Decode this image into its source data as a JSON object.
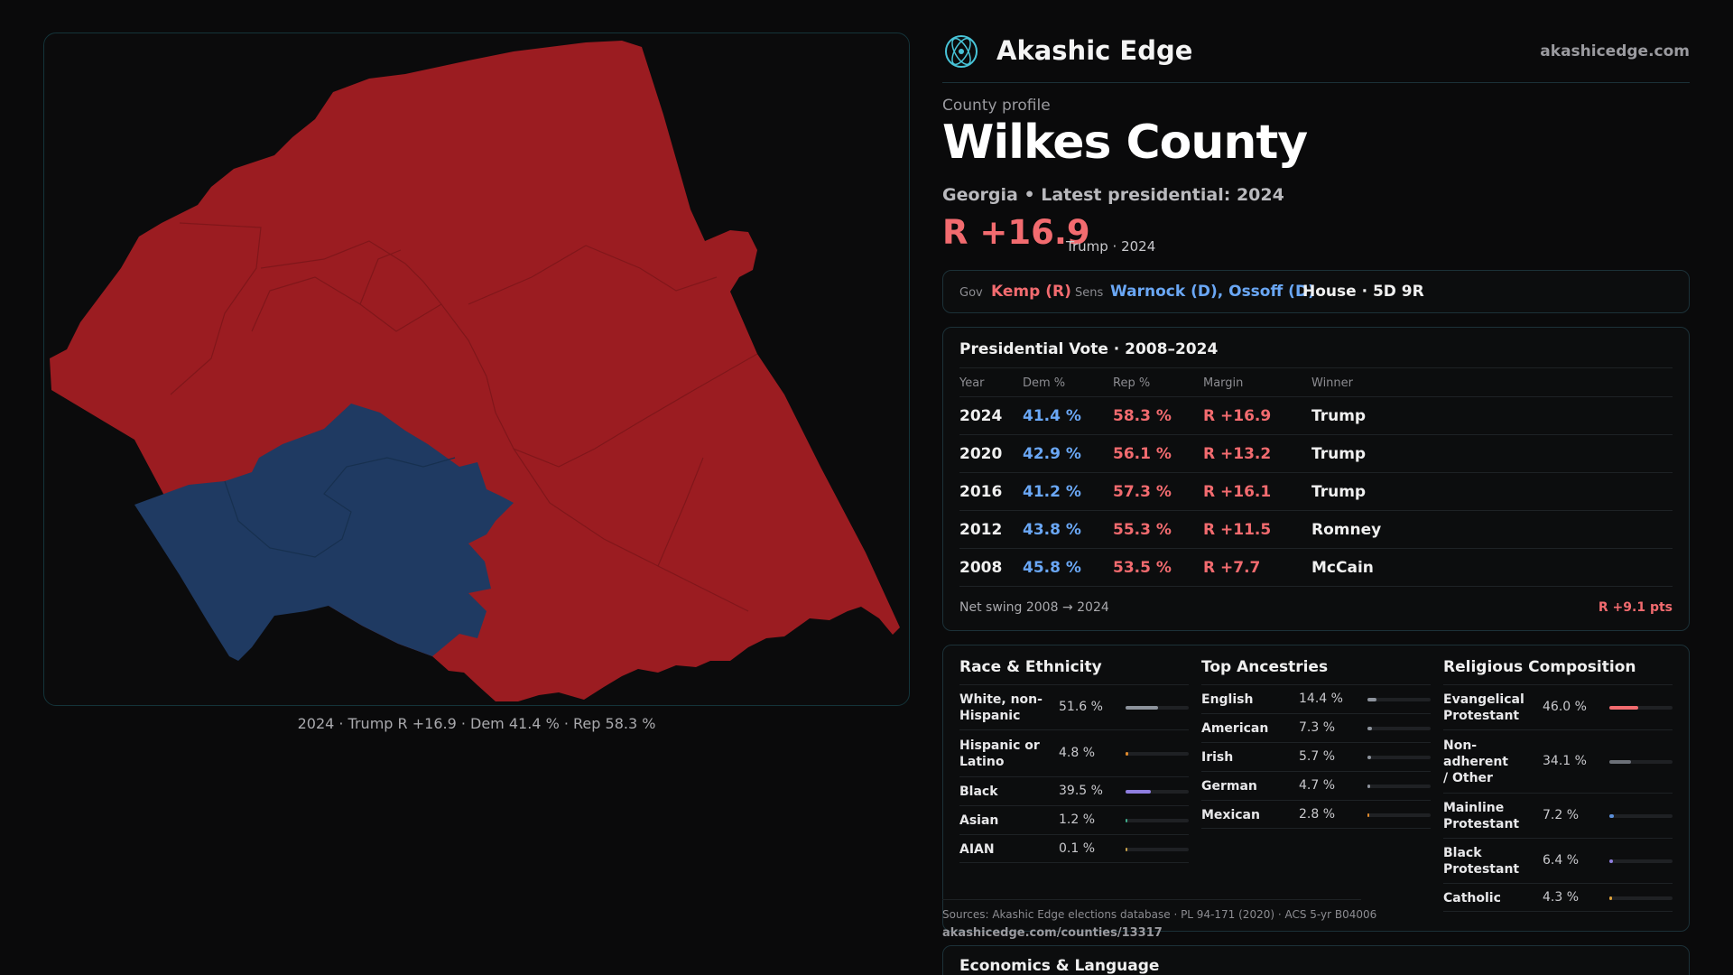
{
  "map": {
    "caption": "2024 · Trump R +16.9 · Dem 41.4 % · Rep 58.3 %",
    "colors": {
      "republican": "#9b1c21",
      "democrat": "#1f3a62",
      "border": "#14343a"
    }
  },
  "brand": {
    "name": "Akashic Edge",
    "url": "akashicedge.com",
    "logo_icon": "atom-globe-icon"
  },
  "profile": {
    "label": "County profile",
    "title": "Wilkes County",
    "subtitle": "Georgia • Latest presidential: 2024",
    "margin": "R +16.9",
    "margin_note": "Trump · 2024"
  },
  "officials": {
    "gov_label": "Gov",
    "gov": "Kemp (R)",
    "sens_label": "Sens",
    "sens": "Warnock (D), Ossoff (D)",
    "house": "House · 5D 9R"
  },
  "presidential": {
    "title": "Presidential Vote · 2008–2024",
    "columns": [
      "Year",
      "Dem %",
      "Rep %",
      "Margin",
      "Winner"
    ],
    "rows": [
      {
        "year": "2024",
        "dem": "41.4 %",
        "rep": "58.3 %",
        "margin": "R +16.9",
        "winner": "Trump"
      },
      {
        "year": "2020",
        "dem": "42.9 %",
        "rep": "56.1 %",
        "margin": "R +13.2",
        "winner": "Trump"
      },
      {
        "year": "2016",
        "dem": "41.2 %",
        "rep": "57.3 %",
        "margin": "R +16.1",
        "winner": "Trump"
      },
      {
        "year": "2012",
        "dem": "43.8 %",
        "rep": "55.3 %",
        "margin": "R +11.5",
        "winner": "Romney"
      },
      {
        "year": "2008",
        "dem": "45.8 %",
        "rep": "53.5 %",
        "margin": "R +7.7",
        "winner": "McCain"
      }
    ],
    "swing_label": "Net swing 2008 → 2024",
    "swing_value": "R +9.1 pts"
  },
  "race": {
    "title": "Race & Ethnicity",
    "rows": [
      {
        "label": "White, non-Hispanic",
        "value": "51.6 %",
        "pct": 51.6,
        "color": "#8d939c"
      },
      {
        "label": "Hispanic or Latino",
        "value": "4.8 %",
        "pct": 4.8,
        "color": "#e08a2c"
      },
      {
        "label": "Black",
        "value": "39.5 %",
        "pct": 39.5,
        "color": "#8f7ee0"
      },
      {
        "label": "Asian",
        "value": "1.2 %",
        "pct": 1.2,
        "color": "#3fae8c"
      },
      {
        "label": "AIAN",
        "value": "0.1 %",
        "pct": 0.1,
        "color": "#c9a24a"
      }
    ]
  },
  "ancestry": {
    "title": "Top Ancestries",
    "rows": [
      {
        "label": "English",
        "value": "14.4 %",
        "pct": 14.4,
        "color": "#8d939c"
      },
      {
        "label": "American",
        "value": "7.3 %",
        "pct": 7.3,
        "color": "#8d939c"
      },
      {
        "label": "Irish",
        "value": "5.7 %",
        "pct": 5.7,
        "color": "#8d939c"
      },
      {
        "label": "German",
        "value": "4.7 %",
        "pct": 4.7,
        "color": "#8d939c"
      },
      {
        "label": "Mexican",
        "value": "2.8 %",
        "pct": 2.8,
        "color": "#e08a2c"
      }
    ]
  },
  "religion": {
    "title": "Religious Composition",
    "rows": [
      {
        "label": "Evangelical Protestant",
        "value": "46.0 %",
        "pct": 46.0,
        "color": "#f26b6f"
      },
      {
        "label": "Non-adherent / Other",
        "value": "34.1 %",
        "pct": 34.1,
        "color": "#6c7078"
      },
      {
        "label": "Mainline Protestant",
        "value": "7.2 %",
        "pct": 7.2,
        "color": "#5b8fd9"
      },
      {
        "label": "Black Protestant",
        "value": "6.4 %",
        "pct": 6.4,
        "color": "#8f7ee0"
      },
      {
        "label": "Catholic",
        "value": "4.3 %",
        "pct": 4.3,
        "color": "#e0a23a"
      }
    ]
  },
  "sources": {
    "text": "Sources: Akashic Edge elections database · PL 94-171 (2020) · ACS 5-yr B04006",
    "url": "akashicedge.com/counties/13317"
  },
  "economics": {
    "title": "Economics & Language"
  }
}
